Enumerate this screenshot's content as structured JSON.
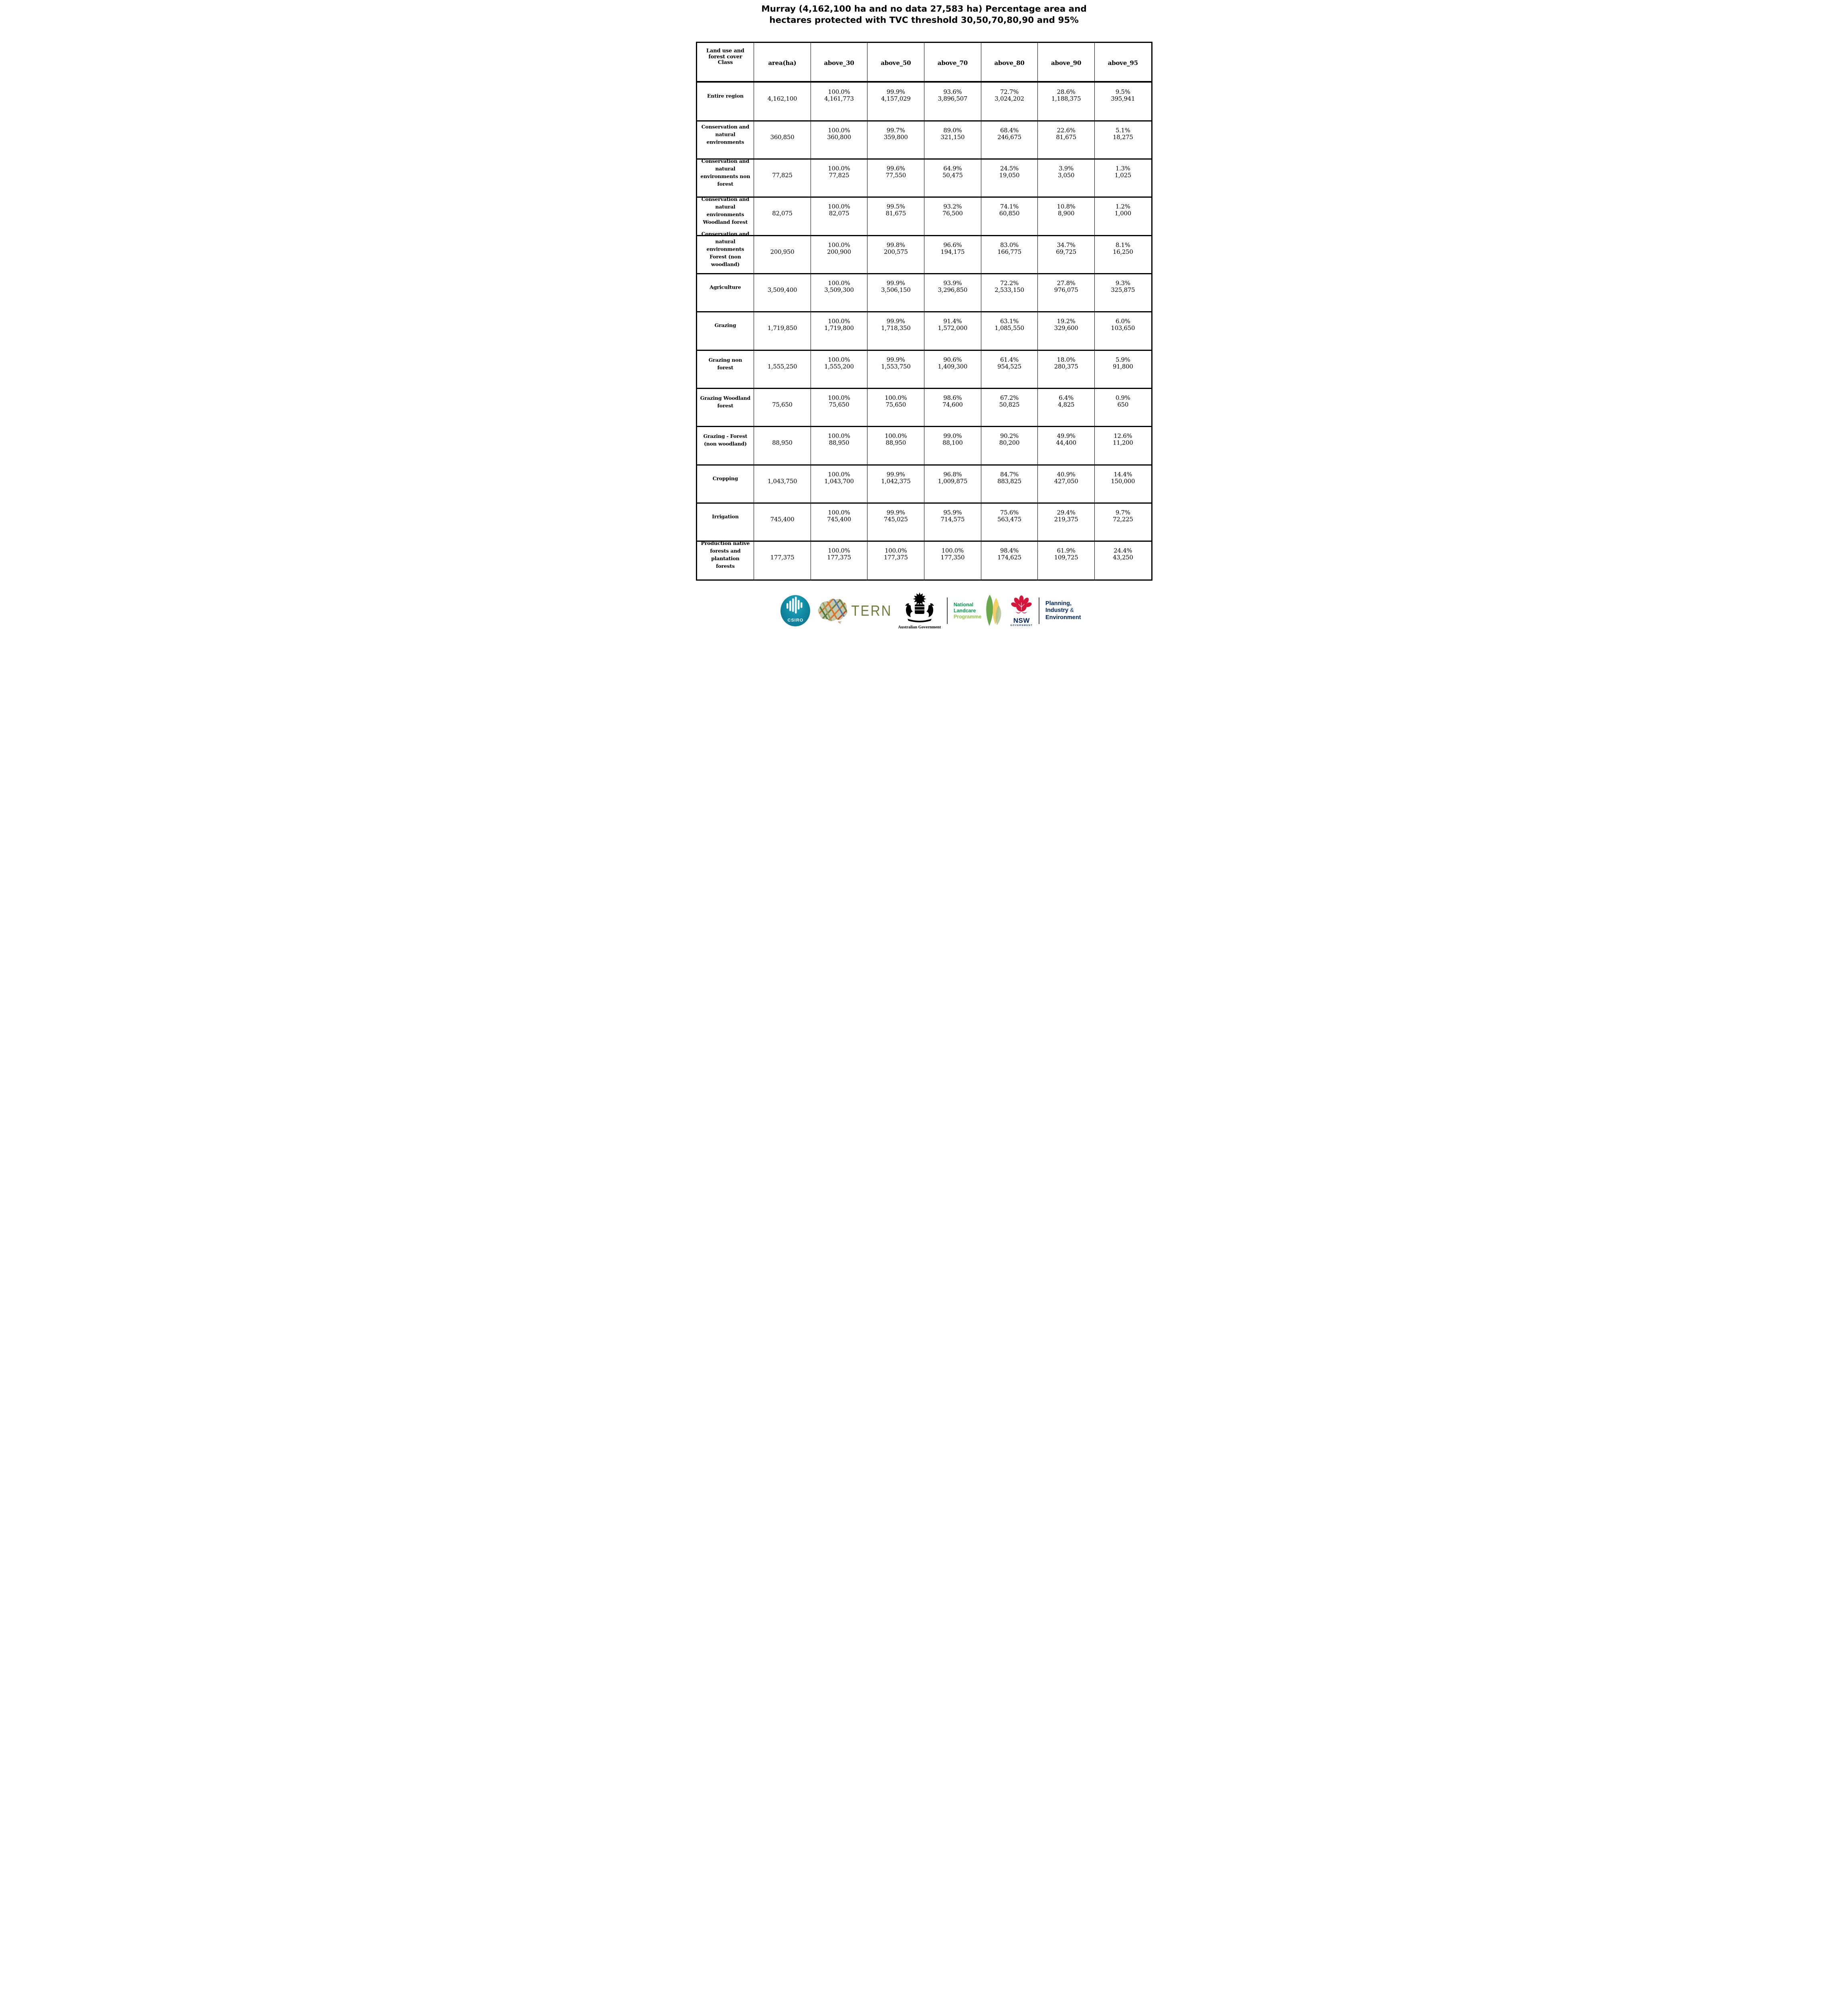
{
  "title": {
    "line1": "Murray (4,162,100 ha and no data 27,583 ha) Percentage area and",
    "line2": "hectares protected with TVC threshold 30,50,70,80,90 and 95%"
  },
  "table": {
    "header": [
      "Land use and\nforest cover\nClass",
      "area(ha)",
      "above_30",
      "above_50",
      "above_70",
      "above_80",
      "above_90",
      "above_95"
    ],
    "rows": [
      {
        "label": "Entire region",
        "area": "4,162,100",
        "values": [
          {
            "pct": "100.0%",
            "ha": "4,161,773"
          },
          {
            "pct": "99.9%",
            "ha": "4,157,029"
          },
          {
            "pct": "93.6%",
            "ha": "3,896,507"
          },
          {
            "pct": "72.7%",
            "ha": "3,024,202"
          },
          {
            "pct": "28.6%",
            "ha": "1,188,375"
          },
          {
            "pct": "9.5%",
            "ha": "395,941"
          }
        ]
      },
      {
        "label": "Conservation and\nnatural\nenvironments",
        "area": "360,850",
        "values": [
          {
            "pct": "100.0%",
            "ha": "360,800"
          },
          {
            "pct": "99.7%",
            "ha": "359,800"
          },
          {
            "pct": "89.0%",
            "ha": "321,150"
          },
          {
            "pct": "68.4%",
            "ha": "246,675"
          },
          {
            "pct": "22.6%",
            "ha": "81,675"
          },
          {
            "pct": "5.1%",
            "ha": "18,275"
          }
        ]
      },
      {
        "label": "Conservation and\nnatural\nenvironments non\nforest",
        "area": "77,825",
        "values": [
          {
            "pct": "100.0%",
            "ha": "77,825"
          },
          {
            "pct": "99.6%",
            "ha": "77,550"
          },
          {
            "pct": "64.9%",
            "ha": "50,475"
          },
          {
            "pct": "24.5%",
            "ha": "19,050"
          },
          {
            "pct": "3.9%",
            "ha": "3,050"
          },
          {
            "pct": "1.3%",
            "ha": "1,025"
          }
        ]
      },
      {
        "label": "Conservation and\nnatural\nenvironments\nWoodland forest",
        "area": "82,075",
        "values": [
          {
            "pct": "100.0%",
            "ha": "82,075"
          },
          {
            "pct": "99.5%",
            "ha": "81,675"
          },
          {
            "pct": "93.2%",
            "ha": "76,500"
          },
          {
            "pct": "74.1%",
            "ha": "60,850"
          },
          {
            "pct": "10.8%",
            "ha": "8,900"
          },
          {
            "pct": "1.2%",
            "ha": "1,000"
          }
        ]
      },
      {
        "label": "Conservation and\nnatural\nenvironments\nForest (non\nwoodland)",
        "area": "200,950",
        "values": [
          {
            "pct": "100.0%",
            "ha": "200,900"
          },
          {
            "pct": "99.8%",
            "ha": "200,575"
          },
          {
            "pct": "96.6%",
            "ha": "194,175"
          },
          {
            "pct": "83.0%",
            "ha": "166,775"
          },
          {
            "pct": "34.7%",
            "ha": "69,725"
          },
          {
            "pct": "8.1%",
            "ha": "16,250"
          }
        ]
      },
      {
        "label": "Agriculture",
        "area": "3,509,400",
        "values": [
          {
            "pct": "100.0%",
            "ha": "3,509,300"
          },
          {
            "pct": "99.9%",
            "ha": "3,506,150"
          },
          {
            "pct": "93.9%",
            "ha": "3,296,850"
          },
          {
            "pct": "72.2%",
            "ha": "2,533,150"
          },
          {
            "pct": "27.8%",
            "ha": "976,075"
          },
          {
            "pct": "9.3%",
            "ha": "325,875"
          }
        ]
      },
      {
        "label": "Grazing",
        "area": "1,719,850",
        "values": [
          {
            "pct": "100.0%",
            "ha": "1,719,800"
          },
          {
            "pct": "99.9%",
            "ha": "1,718,350"
          },
          {
            "pct": "91.4%",
            "ha": "1,572,000"
          },
          {
            "pct": "63.1%",
            "ha": "1,085,550"
          },
          {
            "pct": "19.2%",
            "ha": "329,600"
          },
          {
            "pct": "6.0%",
            "ha": "103,650"
          }
        ]
      },
      {
        "label": "Grazing non\nforest",
        "area": "1,555,250",
        "values": [
          {
            "pct": "100.0%",
            "ha": "1,555,200"
          },
          {
            "pct": "99.9%",
            "ha": "1,553,750"
          },
          {
            "pct": "90.6%",
            "ha": "1,409,300"
          },
          {
            "pct": "61.4%",
            "ha": "954,525"
          },
          {
            "pct": "18.0%",
            "ha": "280,375"
          },
          {
            "pct": "5.9%",
            "ha": "91,800"
          }
        ]
      },
      {
        "label": "Grazing Woodland\nforest",
        "area": "75,650",
        "values": [
          {
            "pct": "100.0%",
            "ha": "75,650"
          },
          {
            "pct": "100.0%",
            "ha": "75,650"
          },
          {
            "pct": "98.6%",
            "ha": "74,600"
          },
          {
            "pct": "67.2%",
            "ha": "50,825"
          },
          {
            "pct": "6.4%",
            "ha": "4,825"
          },
          {
            "pct": "0.9%",
            "ha": "650"
          }
        ]
      },
      {
        "label": "Grazing - Forest\n(non woodland)",
        "area": "88,950",
        "values": [
          {
            "pct": "100.0%",
            "ha": "88,950"
          },
          {
            "pct": "100.0%",
            "ha": "88,950"
          },
          {
            "pct": "99.0%",
            "ha": "88,100"
          },
          {
            "pct": "90.2%",
            "ha": "80,200"
          },
          {
            "pct": "49.9%",
            "ha": "44,400"
          },
          {
            "pct": "12.6%",
            "ha": "11,200"
          }
        ]
      },
      {
        "label": "Cropping",
        "area": "1,043,750",
        "values": [
          {
            "pct": "100.0%",
            "ha": "1,043,700"
          },
          {
            "pct": "99.9%",
            "ha": "1,042,375"
          },
          {
            "pct": "96.8%",
            "ha": "1,009,875"
          },
          {
            "pct": "84.7%",
            "ha": "883,825"
          },
          {
            "pct": "40.9%",
            "ha": "427,050"
          },
          {
            "pct": "14.4%",
            "ha": "150,000"
          }
        ]
      },
      {
        "label": "Irrigation",
        "area": "745,400",
        "values": [
          {
            "pct": "100.0%",
            "ha": "745,400"
          },
          {
            "pct": "99.9%",
            "ha": "745,025"
          },
          {
            "pct": "95.9%",
            "ha": "714,575"
          },
          {
            "pct": "75.6%",
            "ha": "563,475"
          },
          {
            "pct": "29.4%",
            "ha": "219,375"
          },
          {
            "pct": "9.7%",
            "ha": "72,225"
          }
        ]
      },
      {
        "label": "Production native\nforests and\nplantation\nforests",
        "area": "177,375",
        "values": [
          {
            "pct": "100.0%",
            "ha": "177,375"
          },
          {
            "pct": "100.0%",
            "ha": "177,375"
          },
          {
            "pct": "100.0%",
            "ha": "177,350"
          },
          {
            "pct": "98.4%",
            "ha": "174,625"
          },
          {
            "pct": "61.9%",
            "ha": "109,725"
          },
          {
            "pct": "24.4%",
            "ha": "43,250"
          }
        ]
      }
    ]
  },
  "footer": {
    "csiro": "CSIRO",
    "tern": "TERN",
    "aus_gov": "Australian Government",
    "landcare": {
      "line1": "National",
      "line2": "Landcare",
      "line3": "Programme"
    },
    "nsw": {
      "name": "NSW",
      "sub": "GOVERNMENT"
    },
    "planning": {
      "line1": "Planning,",
      "line2": "Industry",
      "amp": " &",
      "line3": "Environment"
    },
    "colors": {
      "csiro_teal": "#0e869f",
      "tern_olive": "#6f7d3f",
      "landcare_green": "#00a14b",
      "landcare_light_green": "#8dc63f",
      "nsw_navy": "#002664",
      "nsw_red": "#d7153a",
      "crest_black": "#000000"
    }
  }
}
